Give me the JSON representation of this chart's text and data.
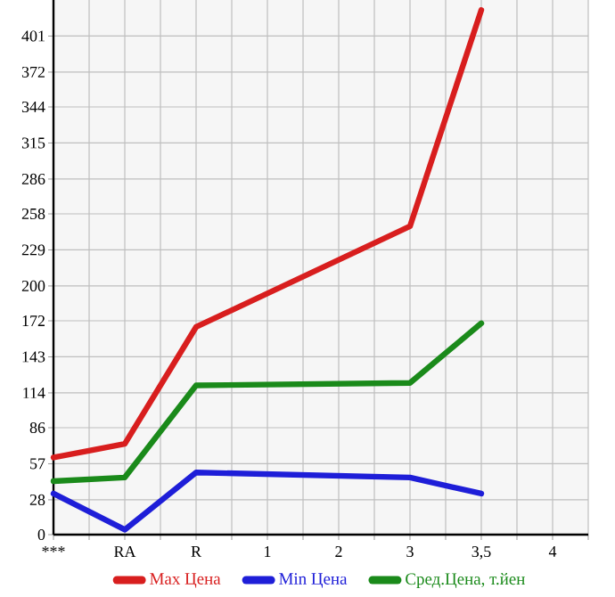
{
  "chart_data": {
    "type": "line",
    "categories": [
      "***",
      "RA",
      "R",
      "1",
      "2",
      "3",
      "3,5",
      "4"
    ],
    "series": [
      {
        "name": "Max Цена",
        "color": "#d81e1e",
        "values": [
          62,
          73,
          167,
          null,
          null,
          248,
          422,
          null
        ]
      },
      {
        "name": "Min Цена",
        "color": "#1e1ed8",
        "values": [
          33,
          4,
          50,
          null,
          null,
          46,
          33,
          null
        ]
      },
      {
        "name": "Сред.Цена, т.йен",
        "color": "#1a8a1a",
        "values": [
          43,
          46,
          120,
          null,
          null,
          122,
          170,
          null
        ]
      }
    ],
    "ylim": [
      0,
      430
    ],
    "yticks": [
      0,
      28,
      57,
      86,
      114,
      143,
      172,
      200,
      229,
      258,
      286,
      315,
      344,
      372,
      401
    ],
    "grid": true,
    "legend": "bottom",
    "marker": "none",
    "line_style": "solid"
  }
}
